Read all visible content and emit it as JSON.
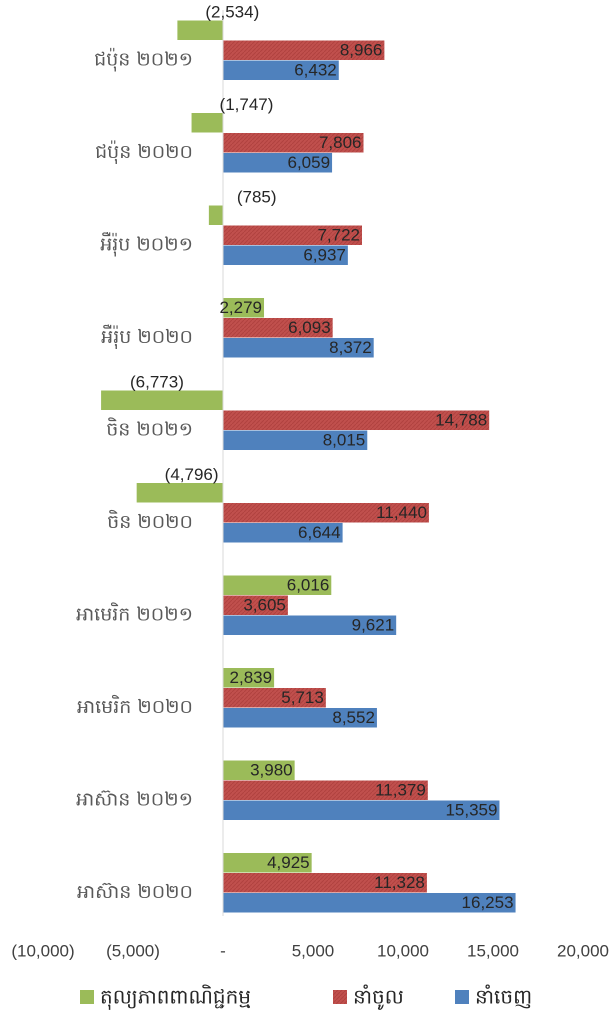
{
  "chart_data": {
    "type": "bar",
    "orientation": "horizontal",
    "categories": [
      "ជប៉ុន ២០២១",
      "ជប៉ុន ២០២០",
      "អឺរ៉ុប ២០២១",
      "អឺរ៉ុប ២០២០",
      "ចិន ២០២១",
      "ចិន ២០២០",
      "អាមេរិក ២០២១",
      "អាមេរិក ២០២០",
      "អាស៊ាន ២០២១",
      "អាស៊ាន ២០២០"
    ],
    "series": [
      {
        "name": "តុល្យភាពពាណិជ្ជកម្ម",
        "color": "#9BBB59",
        "values": [
          -2534,
          -1747,
          -785,
          2279,
          -6773,
          -4796,
          6016,
          2839,
          3980,
          4925
        ],
        "labels": [
          "(2,534)",
          "(1,747)",
          "(785)",
          "2,279",
          "(6,773)",
          "(4,796)",
          "6,016",
          "2,839",
          "3,980",
          "4,925"
        ]
      },
      {
        "name": "នាំចូល",
        "color": "#C0504D",
        "values": [
          8966,
          7806,
          7722,
          6093,
          14788,
          11440,
          3605,
          5713,
          11379,
          11328
        ],
        "labels": [
          "8,966",
          "7,806",
          "7,722",
          "6,093",
          "14,788",
          "11,440",
          "3,605",
          "5,713",
          "11,379",
          "11,328"
        ]
      },
      {
        "name": "នាំចេញ",
        "color": "#4F81BD",
        "values": [
          6432,
          6059,
          6937,
          8372,
          8015,
          6644,
          9621,
          8552,
          15359,
          16253
        ],
        "labels": [
          "6,432",
          "6,059",
          "6,937",
          "8,372",
          "8,015",
          "6,644",
          "9,621",
          "8,552",
          "15,359",
          "16,253"
        ]
      }
    ],
    "xlim": [
      -10000,
      20000
    ],
    "xticks": [
      -10000,
      -5000,
      0,
      5000,
      10000,
      15000,
      20000
    ],
    "xtick_labels": [
      "(10,000)",
      "(5,000)",
      "-",
      "5,000",
      "10,000",
      "15,000",
      "20,000"
    ],
    "legend_position": "bottom",
    "grid": false
  }
}
